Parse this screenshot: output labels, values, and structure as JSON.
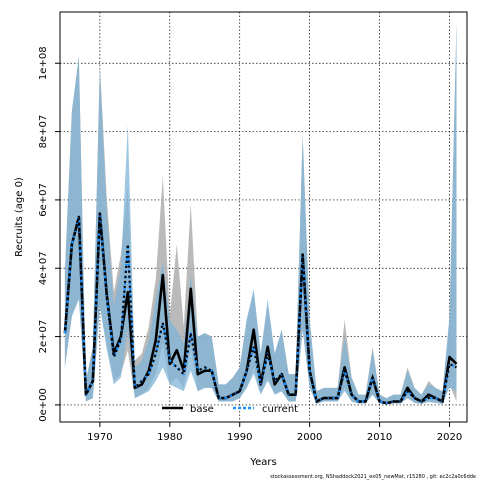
{
  "chart_data": {
    "type": "line",
    "title": "",
    "xlabel": "Years",
    "ylabel": "Recruits (age 0)",
    "xlim": [
      1964.3,
      2022.5
    ],
    "ylim": [
      -5000000,
      115000000
    ],
    "x_ticks": [
      1970,
      1980,
      1990,
      2000,
      2010,
      2020
    ],
    "y_ticks": [
      0,
      20000000,
      40000000,
      60000000,
      80000000,
      100000000
    ],
    "y_tick_labels": [
      "0e+00",
      "2e+07",
      "4e+07",
      "6e+07",
      "8e+07",
      "1e+08"
    ],
    "grid": true,
    "legend_position": "bottom-center",
    "x": [
      1965,
      1966,
      1967,
      1968,
      1969,
      1970,
      1971,
      1972,
      1973,
      1974,
      1975,
      1976,
      1977,
      1978,
      1979,
      1980,
      1981,
      1982,
      1983,
      1984,
      1985,
      1986,
      1987,
      1988,
      1989,
      1990,
      1991,
      1992,
      1993,
      1994,
      1995,
      1996,
      1997,
      1998,
      1999,
      2000,
      2001,
      2002,
      2003,
      2004,
      2005,
      2006,
      2007,
      2008,
      2009,
      2010,
      2011,
      2012,
      2013,
      2014,
      2015,
      2016,
      2017,
      2018,
      2019,
      2020,
      2021
    ],
    "series": [
      {
        "name": "base",
        "color": "#000000",
        "band_color": "#a9a9a9",
        "values": [
          21,
          47,
          55,
          3,
          7,
          56,
          32,
          15,
          20,
          33,
          5,
          6,
          10,
          19,
          38,
          12,
          16,
          10,
          34,
          9,
          10,
          10,
          2,
          2,
          3,
          4,
          10,
          22,
          6,
          17,
          6,
          9,
          3,
          3,
          44,
          10,
          1,
          2,
          2,
          2,
          11,
          3,
          1,
          1,
          8,
          1,
          0.5,
          1,
          1,
          5,
          2,
          1,
          3,
          2,
          1,
          14,
          12
        ],
        "lower": [
          11,
          26,
          31,
          1,
          2,
          29,
          18,
          7,
          9,
          16,
          2,
          3,
          5,
          9,
          18,
          6,
          8,
          5,
          17,
          4,
          5,
          5,
          1,
          1,
          1,
          2,
          5,
          11,
          3,
          8,
          3,
          4,
          1,
          1,
          22,
          5,
          0.3,
          1,
          1,
          1,
          5,
          1,
          0.4,
          0.4,
          3,
          0.4,
          0.2,
          0.4,
          0.4,
          2,
          0.6,
          0.3,
          1,
          0.6,
          0.3,
          6,
          1
        ],
        "upper": [
          39,
          86,
          102,
          7,
          17,
          100,
          60,
          33,
          44,
          64,
          13,
          15,
          23,
          37,
          67,
          26,
          47,
          23,
          59,
          20,
          21,
          20,
          6,
          6,
          8,
          11,
          25,
          33,
          15,
          29,
          15,
          22,
          9,
          9,
          79,
          25,
          4,
          5,
          5,
          5,
          25,
          8,
          3,
          3,
          17,
          3,
          2,
          3,
          3,
          11,
          5,
          3,
          7,
          5,
          4,
          25,
          112
        ]
      },
      {
        "name": "current",
        "color": "#1e90ff",
        "band_color": "#7fb4d8",
        "values": [
          21,
          47,
          55,
          3,
          7,
          56,
          31,
          14,
          19,
          47,
          5,
          7,
          9,
          15,
          24,
          13,
          11,
          9,
          21,
          10,
          11,
          10,
          2,
          2,
          3,
          4,
          10,
          17,
          6,
          15,
          7,
          9,
          3,
          3,
          44,
          10,
          1,
          2,
          2,
          2,
          10,
          3,
          1,
          1,
          8,
          1,
          0.5,
          1,
          1,
          4,
          2,
          1,
          2,
          2,
          1,
          12,
          11
        ],
        "lower": [
          11,
          26,
          31,
          1,
          2,
          29,
          16,
          6,
          8,
          22,
          2,
          3,
          4,
          7,
          11,
          6,
          5,
          4,
          10,
          4,
          5,
          5,
          1,
          1,
          1,
          2,
          5,
          9,
          3,
          7,
          3,
          4,
          1,
          1,
          22,
          5,
          0.3,
          1,
          1,
          1,
          4,
          1,
          0.4,
          0.4,
          3,
          0.4,
          0.2,
          0.4,
          0.4,
          2,
          0.6,
          0.3,
          0.8,
          0.6,
          0.3,
          5,
          4
        ],
        "upper": [
          39,
          86,
          102,
          7,
          17,
          98,
          56,
          29,
          40,
          82,
          11,
          13,
          19,
          31,
          42,
          25,
          22,
          18,
          38,
          20,
          21,
          20,
          6,
          6,
          8,
          11,
          25,
          34,
          15,
          31,
          15,
          22,
          9,
          9,
          79,
          25,
          4,
          5,
          5,
          5,
          20,
          8,
          3,
          3,
          16,
          3,
          2,
          3,
          3,
          10,
          5,
          3,
          6,
          5,
          4,
          26,
          112
        ]
      }
    ],
    "value_unit_multiplier": 1000000,
    "footnote": "stockassessment.org, NShaddock2021_ex05_newMat, r15280 , git: ec2c2a0c6dde"
  }
}
